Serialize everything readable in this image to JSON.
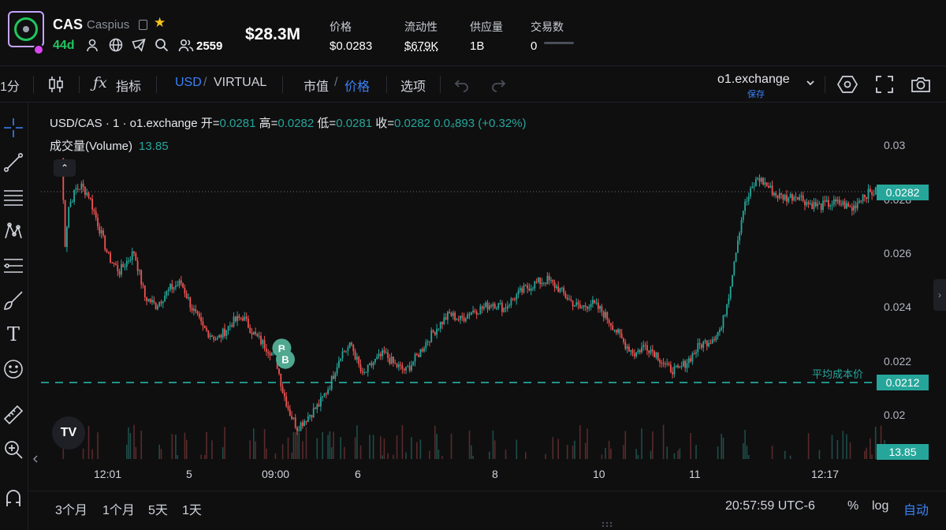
{
  "token": {
    "symbol": "CAS",
    "name": "Caspius",
    "age": "44d",
    "holders": "2559",
    "market_cap": "$28.3M"
  },
  "stats": [
    {
      "label": "价格",
      "value": "$0.0283"
    },
    {
      "label": "流动性",
      "value": "$679K"
    },
    {
      "label": "供应量",
      "value": "1B"
    },
    {
      "label": "交易数",
      "value": "0"
    }
  ],
  "toolbar": {
    "interval": "1分",
    "indicators": "指标",
    "usd": "USD",
    "sep": "/",
    "virtual": "VIRTUAL",
    "mcap": "市值",
    "price": "价格",
    "options": "选项",
    "exchange": "o1.exchange",
    "save": "保存"
  },
  "legend": {
    "pair": "USD/CAS · 1 · o1.exchange",
    "open_lbl": "开=",
    "open": "0.0281",
    "high_lbl": "高=",
    "high": "0.0282",
    "low_lbl": "低=",
    "low": "0.0281",
    "close_lbl": "收=",
    "close": "0.0282",
    "change": "0.0₄893 (+0.32%)",
    "volume_label": "成交量(Volume)",
    "volume": "13.85"
  },
  "chart_data": {
    "type": "candlestick",
    "y_ticks": [
      "0.03",
      "0.028",
      "0.026",
      "0.024",
      "0.022",
      "0.02"
    ],
    "ylim": [
      0.0193,
      0.0307
    ],
    "x_ticks": [
      "12:01",
      "5",
      "09:00",
      "6",
      "8",
      "10",
      "11",
      "12:17"
    ],
    "price_path": [
      [
        0,
        0.0293
      ],
      [
        1,
        0.0278
      ],
      [
        2,
        0.0263
      ],
      [
        4,
        0.0276
      ],
      [
        8,
        0.0282
      ],
      [
        11,
        0.0283
      ],
      [
        15,
        0.028
      ],
      [
        20,
        0.027
      ],
      [
        26,
        0.0258
      ],
      [
        32,
        0.0253
      ],
      [
        40,
        0.026
      ],
      [
        46,
        0.0244
      ],
      [
        52,
        0.0241
      ],
      [
        60,
        0.0247
      ],
      [
        66,
        0.0249
      ],
      [
        72,
        0.024
      ],
      [
        78,
        0.0233
      ],
      [
        86,
        0.0229
      ],
      [
        94,
        0.0235
      ],
      [
        100,
        0.0237
      ],
      [
        106,
        0.0231
      ],
      [
        112,
        0.0227
      ],
      [
        118,
        0.0223
      ],
      [
        122,
        0.0211
      ],
      [
        126,
        0.0203
      ],
      [
        130,
        0.0198
      ],
      [
        136,
        0.0202
      ],
      [
        142,
        0.0206
      ],
      [
        148,
        0.0213
      ],
      [
        154,
        0.0224
      ],
      [
        160,
        0.0227
      ],
      [
        166,
        0.0216
      ],
      [
        172,
        0.0221
      ],
      [
        178,
        0.0224
      ],
      [
        184,
        0.022
      ],
      [
        190,
        0.0218
      ],
      [
        196,
        0.0223
      ],
      [
        202,
        0.0229
      ],
      [
        208,
        0.0234
      ],
      [
        214,
        0.0238
      ],
      [
        220,
        0.0236
      ],
      [
        226,
        0.0239
      ],
      [
        232,
        0.024
      ],
      [
        238,
        0.0242
      ],
      [
        244,
        0.024
      ],
      [
        250,
        0.0244
      ],
      [
        256,
        0.0247
      ],
      [
        262,
        0.0249
      ],
      [
        268,
        0.025
      ],
      [
        274,
        0.0247
      ],
      [
        280,
        0.0243
      ],
      [
        286,
        0.024
      ],
      [
        292,
        0.0242
      ],
      [
        298,
        0.0239
      ],
      [
        304,
        0.0234
      ],
      [
        310,
        0.0228
      ],
      [
        316,
        0.0224
      ],
      [
        322,
        0.0227
      ],
      [
        328,
        0.0224
      ],
      [
        334,
        0.0219
      ],
      [
        340,
        0.0218
      ],
      [
        346,
        0.0222
      ],
      [
        352,
        0.0227
      ],
      [
        358,
        0.0229
      ],
      [
        364,
        0.0233
      ],
      [
        368,
        0.0245
      ],
      [
        372,
        0.0261
      ],
      [
        376,
        0.0275
      ],
      [
        380,
        0.0281
      ],
      [
        384,
        0.0286
      ],
      [
        388,
        0.0284
      ],
      [
        394,
        0.028
      ],
      [
        400,
        0.0279
      ],
      [
        406,
        0.028
      ],
      [
        412,
        0.0277
      ],
      [
        418,
        0.0276
      ],
      [
        424,
        0.0277
      ],
      [
        430,
        0.0277
      ],
      [
        436,
        0.0275
      ],
      [
        442,
        0.028
      ],
      [
        448,
        0.0281
      ],
      [
        456,
        0.0282
      ]
    ],
    "current_price": "0.0282",
    "avg_cost": "0.0212",
    "avg_cost_label": "平均成本价",
    "volume_value": "13.85",
    "buy_markers": [
      {
        "label": "B",
        "i": 118,
        "price": 0.0226
      },
      {
        "label": "B",
        "i": 120,
        "price": 0.0222
      }
    ]
  },
  "bottom": {
    "ranges": [
      "3个月",
      "1个月",
      "5天",
      "1天"
    ],
    "time": "20:57:59 UTC-6",
    "percent": "%",
    "log": "log",
    "auto": "自动"
  },
  "colors": {
    "up": "#26a69a",
    "down": "#ef5350",
    "accent": "#3b82f6"
  }
}
